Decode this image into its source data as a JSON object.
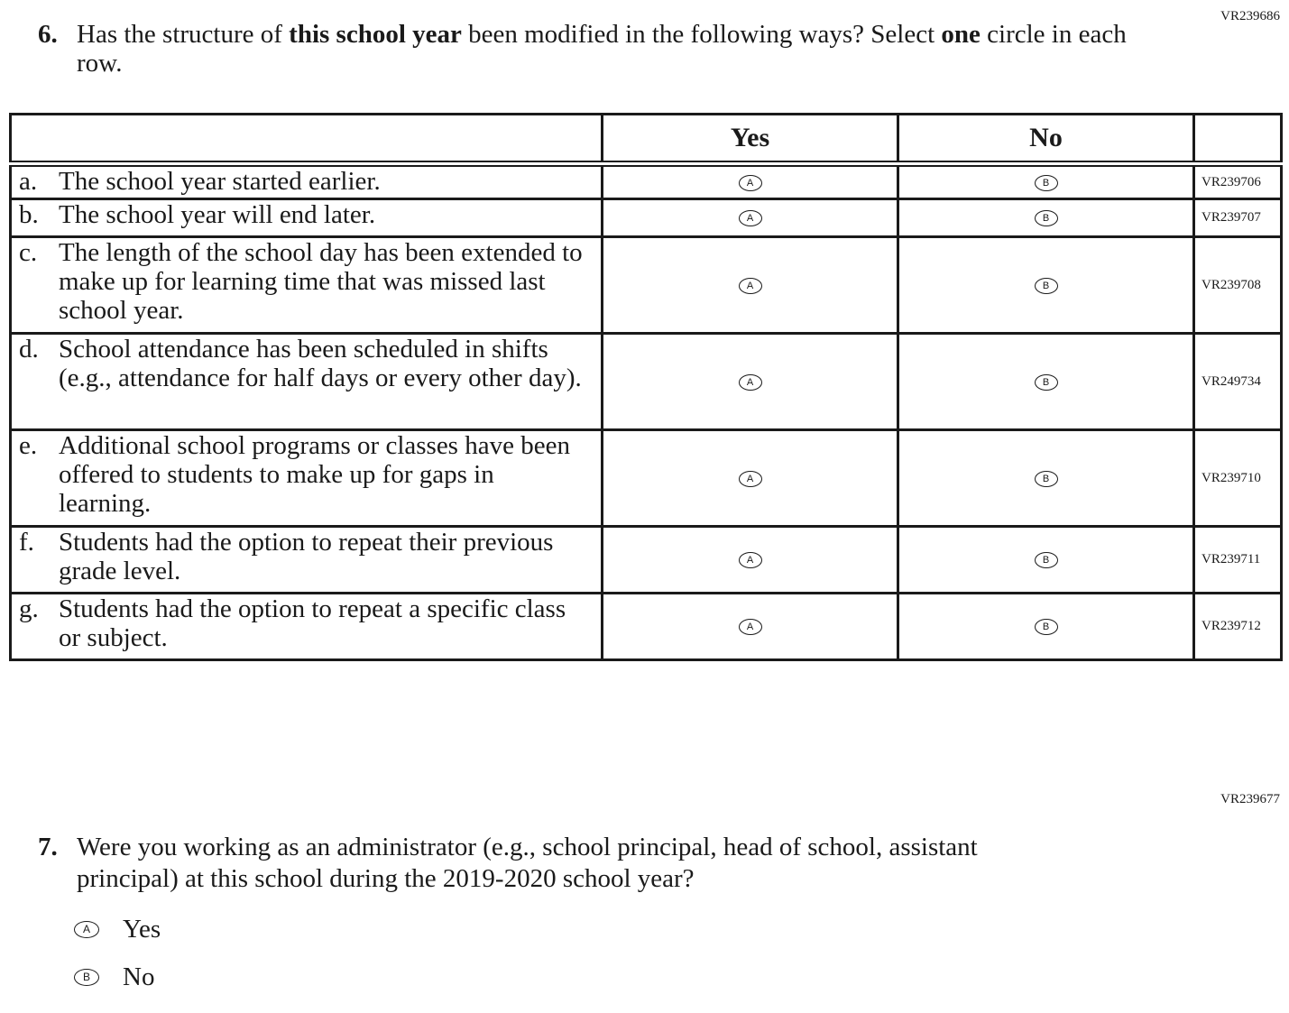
{
  "q6": {
    "code": "VR239686",
    "number": "6.",
    "text_parts": [
      "Has the structure of ",
      "this school year",
      " been modified in the following ways? Select ",
      "one",
      " circle in each row."
    ],
    "columns": [
      "Yes",
      "No"
    ],
    "bubbles": [
      "A",
      "B"
    ],
    "rows": [
      {
        "letter": "a.",
        "text": "The school year started earlier.",
        "code": "VR239706"
      },
      {
        "letter": "b.",
        "text": "The school year will end later.",
        "code": "VR239707"
      },
      {
        "letter": "c.",
        "text": "The length of the school day has been extended to make up for learning time that was missed last school year.",
        "code": "VR239708"
      },
      {
        "letter": "d.",
        "text": "School attendance has been scheduled in shifts (e.g., attendance for half days or every other day).",
        "code": "VR249734"
      },
      {
        "letter": "e.",
        "text": "Additional school programs or classes have been offered to students to make up for gaps in learning.",
        "code": "VR239710"
      },
      {
        "letter": "f.",
        "text": "Students had the option to repeat their previous grade level.",
        "code": "VR239711"
      },
      {
        "letter": "g.",
        "text": "Students had the option to repeat a specific class or subject.",
        "code": "VR239712"
      }
    ]
  },
  "q7": {
    "code": "VR239677",
    "number": "7.",
    "text": "Were you working as an administrator (e.g., school principal, head of school, assistant principal) at this school during the 2019-2020 school year?",
    "options": [
      {
        "bubble": "A",
        "label": "Yes"
      },
      {
        "bubble": "B",
        "label": "No"
      }
    ]
  }
}
